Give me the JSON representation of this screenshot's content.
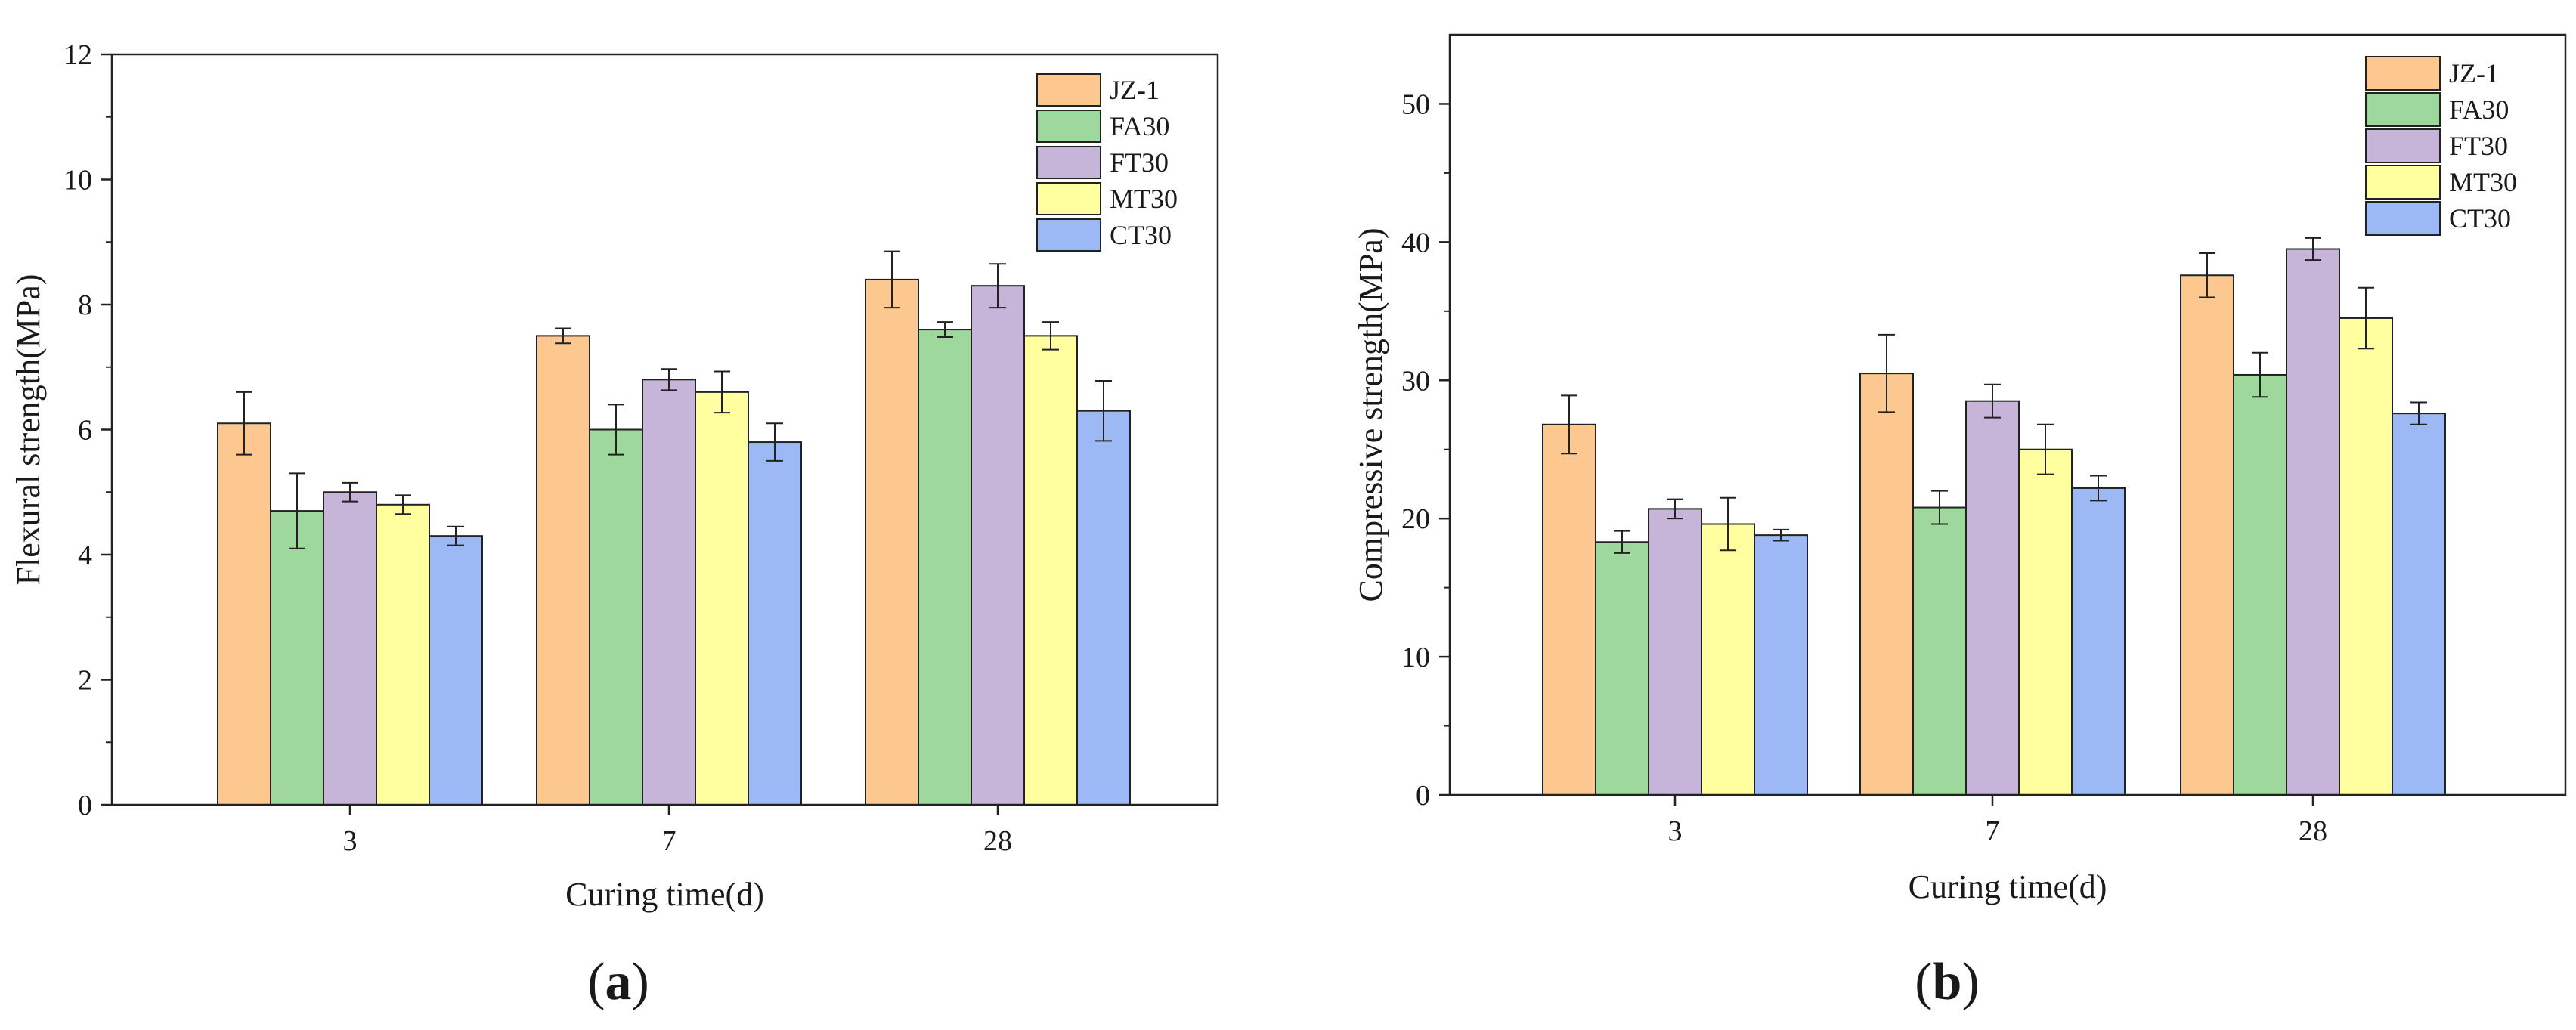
{
  "chart_data": [
    {
      "type": "bar",
      "panel_label": "a",
      "title": "",
      "xlabel": "Curing time(d)",
      "ylabel": "Flexural strength(MPa)",
      "categories": [
        "3",
        "7",
        "28"
      ],
      "ylim": [
        0,
        12
      ],
      "yticks": [
        0,
        2,
        4,
        6,
        8,
        10,
        12
      ],
      "grid": false,
      "legend_position": "top-right",
      "series": [
        {
          "name": "JZ-1",
          "color": "#FDC88F",
          "values": [
            6.1,
            7.5,
            8.4
          ],
          "errors": [
            0.5,
            0.12,
            0.45
          ]
        },
        {
          "name": "FA30",
          "color": "#9FD89C",
          "values": [
            4.7,
            6.0,
            7.6
          ],
          "errors": [
            0.6,
            0.4,
            0.12
          ]
        },
        {
          "name": "FT30",
          "color": "#C6B4D9",
          "values": [
            5.0,
            6.8,
            8.3
          ],
          "errors": [
            0.15,
            0.17,
            0.35
          ]
        },
        {
          "name": "MT30",
          "color": "#FFFFA0",
          "values": [
            4.8,
            6.6,
            7.5
          ],
          "errors": [
            0.15,
            0.33,
            0.22
          ]
        },
        {
          "name": "CT30",
          "color": "#9DB9F5",
          "values": [
            4.3,
            5.8,
            6.3
          ],
          "errors": [
            0.15,
            0.3,
            0.48
          ]
        }
      ]
    },
    {
      "type": "bar",
      "panel_label": "b",
      "title": "",
      "xlabel": "Curing time(d)",
      "ylabel": "Compressive strength(MPa)",
      "categories": [
        "3",
        "7",
        "28"
      ],
      "ylim": [
        0,
        55
      ],
      "yticks": [
        0,
        10,
        20,
        30,
        40,
        50
      ],
      "grid": false,
      "legend_position": "top-right",
      "series": [
        {
          "name": "JZ-1",
          "color": "#FDC88F",
          "values": [
            26.8,
            30.5,
            37.6
          ],
          "errors": [
            2.1,
            2.8,
            1.6
          ]
        },
        {
          "name": "FA30",
          "color": "#9FD89C",
          "values": [
            18.3,
            20.8,
            30.4
          ],
          "errors": [
            0.8,
            1.2,
            1.6
          ]
        },
        {
          "name": "FT30",
          "color": "#C6B4D9",
          "values": [
            20.7,
            28.5,
            39.5
          ],
          "errors": [
            0.7,
            1.2,
            0.8
          ]
        },
        {
          "name": "MT30",
          "color": "#FFFFA0",
          "values": [
            19.6,
            25.0,
            34.5
          ],
          "errors": [
            1.9,
            1.8,
            2.2
          ]
        },
        {
          "name": "CT30",
          "color": "#9DB9F5",
          "values": [
            18.8,
            22.2,
            27.6
          ],
          "errors": [
            0.4,
            0.9,
            0.8
          ]
        }
      ]
    }
  ]
}
